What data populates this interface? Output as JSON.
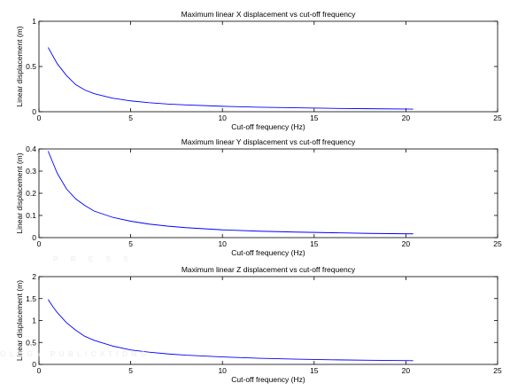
{
  "chart_data": [
    {
      "type": "line",
      "title": "Maximum linear X displacement vs cut-off frequency",
      "xlabel": "Cut-off frequency (Hz)",
      "ylabel": "Linear displacement (m)",
      "xlim": [
        0,
        25
      ],
      "ylim": [
        0,
        1
      ],
      "xticks": [
        "0",
        "5",
        "10",
        "15",
        "20",
        "25"
      ],
      "yticks": [
        "0",
        "0.5",
        "1"
      ],
      "grid": false,
      "series": [
        {
          "color": "#0000ff",
          "x": [
            0.5,
            0.75,
            1,
            1.5,
            2,
            2.5,
            3,
            4,
            5,
            6,
            7,
            8,
            10,
            12,
            14,
            16,
            18,
            20.4
          ],
          "y": [
            0.71,
            0.62,
            0.53,
            0.4,
            0.3,
            0.24,
            0.2,
            0.15,
            0.12,
            0.1,
            0.085,
            0.075,
            0.06,
            0.05,
            0.043,
            0.037,
            0.033,
            0.029
          ]
        }
      ]
    },
    {
      "type": "line",
      "title": "Maximum linear Y displacement vs cut-off frequency",
      "xlabel": "Cut-off frequency (Hz)",
      "ylabel": "Linear displacement (m)",
      "xlim": [
        0,
        25
      ],
      "ylim": [
        0,
        0.4
      ],
      "xticks": [
        "0",
        "5",
        "10",
        "15",
        "20",
        "25"
      ],
      "yticks": [
        "0",
        "0.1",
        "0.2",
        "0.3",
        "0.4"
      ],
      "grid": false,
      "series": [
        {
          "color": "#0000ff",
          "x": [
            0.5,
            0.75,
            1,
            1.5,
            2,
            2.5,
            3,
            4,
            5,
            6,
            7,
            8,
            10,
            12,
            14,
            16,
            18,
            20.4
          ],
          "y": [
            0.39,
            0.34,
            0.29,
            0.22,
            0.175,
            0.145,
            0.12,
            0.092,
            0.074,
            0.061,
            0.052,
            0.045,
            0.035,
            0.029,
            0.025,
            0.022,
            0.019,
            0.017
          ]
        }
      ]
    },
    {
      "type": "line",
      "title": "Maximum linear Z displacement vs cut-off frequency",
      "xlabel": "Cut-off frequency (Hz)",
      "ylabel": "Linear displacement (m)",
      "xlim": [
        0,
        25
      ],
      "ylim": [
        0,
        2
      ],
      "xticks": [
        "0",
        "5",
        "10",
        "15",
        "20",
        "25"
      ],
      "yticks": [
        "0",
        "0.5",
        "1",
        "1.5",
        "2"
      ],
      "grid": false,
      "series": [
        {
          "color": "#0000ff",
          "x": [
            0.5,
            0.75,
            1,
            1.5,
            2,
            2.5,
            3,
            4,
            5,
            6,
            7,
            8,
            10,
            12,
            14,
            16,
            18,
            20.4
          ],
          "y": [
            1.48,
            1.32,
            1.18,
            0.95,
            0.78,
            0.64,
            0.55,
            0.42,
            0.33,
            0.28,
            0.24,
            0.21,
            0.17,
            0.14,
            0.12,
            0.105,
            0.095,
            0.085
          ]
        }
      ]
    }
  ],
  "watermark": {
    "lines": [
      "PRESS",
      "OLOGY PUBLICATIONS"
    ]
  }
}
